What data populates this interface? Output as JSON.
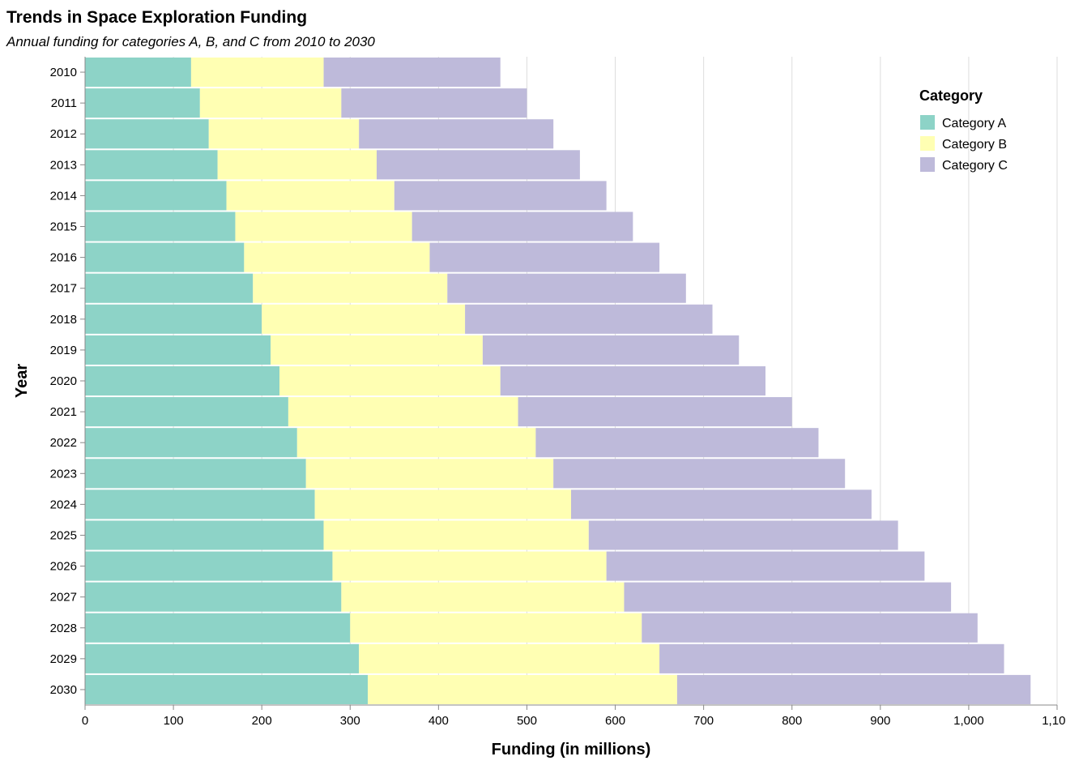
{
  "chart_data": {
    "type": "bar",
    "orientation": "horizontal",
    "stacked": true,
    "title": "Trends in Space Exploration Funding",
    "subtitle": "Annual funding for categories A, B, and C from 2010 to 2030",
    "xlabel": "Funding (in millions)",
    "ylabel": "Year",
    "xlim": [
      0,
      1100
    ],
    "x_ticks": [
      "0",
      "100",
      "200",
      "300",
      "400",
      "500",
      "600",
      "700",
      "800",
      "900",
      "1,000",
      "1,100"
    ],
    "grid": true,
    "legend": {
      "title": "Category",
      "position": "top-right"
    },
    "categories": [
      "2010",
      "2011",
      "2012",
      "2013",
      "2014",
      "2015",
      "2016",
      "2017",
      "2018",
      "2019",
      "2020",
      "2021",
      "2022",
      "2023",
      "2024",
      "2025",
      "2026",
      "2027",
      "2028",
      "2029",
      "2030"
    ],
    "series": [
      {
        "name": "Category A",
        "color": "#8dd3c7",
        "values": [
          120,
          130,
          140,
          150,
          160,
          170,
          180,
          190,
          200,
          210,
          220,
          230,
          240,
          250,
          260,
          270,
          280,
          290,
          300,
          310,
          320
        ]
      },
      {
        "name": "Category B",
        "color": "#ffffb3",
        "values": [
          150,
          160,
          170,
          180,
          190,
          200,
          210,
          220,
          230,
          240,
          250,
          260,
          270,
          280,
          290,
          300,
          310,
          320,
          330,
          340,
          350
        ]
      },
      {
        "name": "Category C",
        "color": "#bebada",
        "values": [
          200,
          210,
          220,
          230,
          240,
          250,
          260,
          270,
          280,
          290,
          300,
          310,
          320,
          330,
          340,
          350,
          360,
          370,
          380,
          390,
          400
        ]
      }
    ]
  }
}
